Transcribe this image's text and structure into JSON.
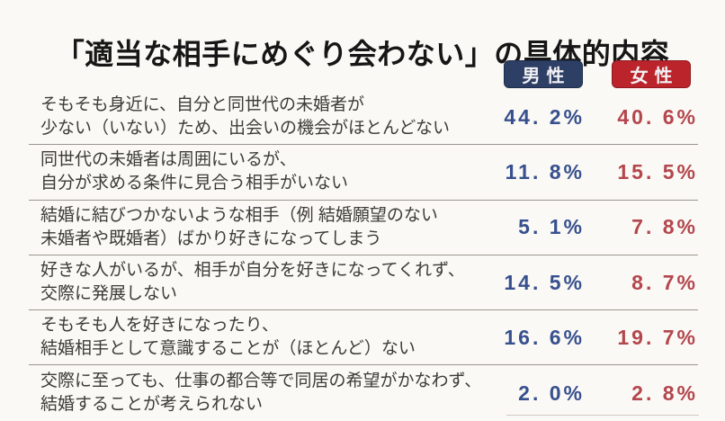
{
  "title": "「適当な相手にめぐり会わない」の具体的内容",
  "legend": {
    "male_label": "男性",
    "female_label": "女性"
  },
  "colors": {
    "male_badge": "#2e3f66",
    "female_badge": "#bb242b",
    "male_value": "#37508e",
    "female_value": "#b4464d"
  },
  "rows": [
    {
      "label_line1": "そもそも身近に、自分と同世代の未婚者が",
      "label_line2": "少ない（いない）ため、出会いの機会がほとんどない",
      "male": "44. 2%",
      "female": "40. 6%"
    },
    {
      "label_line1": "同世代の未婚者は周囲にいるが、",
      "label_line2": "自分が求める条件に見合う相手がいない",
      "male": "11. 8%",
      "female": "15. 5%"
    },
    {
      "label_line1": "結婚に結びつかないような相手（例 結婚願望のない",
      "label_line2": "未婚者や既婚者）ばかり好きになってしまう",
      "male": "5. 1%",
      "female": "7. 8%"
    },
    {
      "label_line1": "好きな人がいるが、相手が自分を好きになってくれず、",
      "label_line2": "交際に発展しない",
      "male": "14. 5%",
      "female": "8. 7%"
    },
    {
      "label_line1": "そもそも人を好きになったり、",
      "label_line2": "結婚相手として意識することが（ほとんど）ない",
      "male": "16. 6%",
      "female": "19. 7%"
    },
    {
      "label_line1": "交際に至っても、仕事の都合等で同居の希望がかなわず、",
      "label_line2": "結婚することが考えられない",
      "male": "2. 0%",
      "female": "2. 8%"
    }
  ],
  "chart_data": {
    "type": "table",
    "title": "「適当な相手にめぐり会わない」の具体的内容",
    "categories": [
      "そもそも身近に、自分と同世代の未婚者が少ない（いない）ため、出会いの機会がほとんどない",
      "同世代の未婚者は周囲にいるが、自分が求める条件に見合う相手がいない",
      "結婚に結びつかないような相手（例 結婚願望のない未婚者や既婚者）ばかり好きになってしまう",
      "好きな人がいるが、相手が自分を好きになってくれず、交際に発展しない",
      "そもそも人を好きになったり、結婚相手として意識することが（ほとんど）ない",
      "交際に至っても、仕事の都合等で同居の希望がかなわず、結婚することが考えられない"
    ],
    "series": [
      {
        "name": "男性",
        "values": [
          44.2,
          11.8,
          5.1,
          14.5,
          16.6,
          2.0
        ]
      },
      {
        "name": "女性",
        "values": [
          40.6,
          15.5,
          7.8,
          8.7,
          19.7,
          2.8
        ]
      }
    ],
    "unit": "%",
    "legend_position": "top-right"
  }
}
